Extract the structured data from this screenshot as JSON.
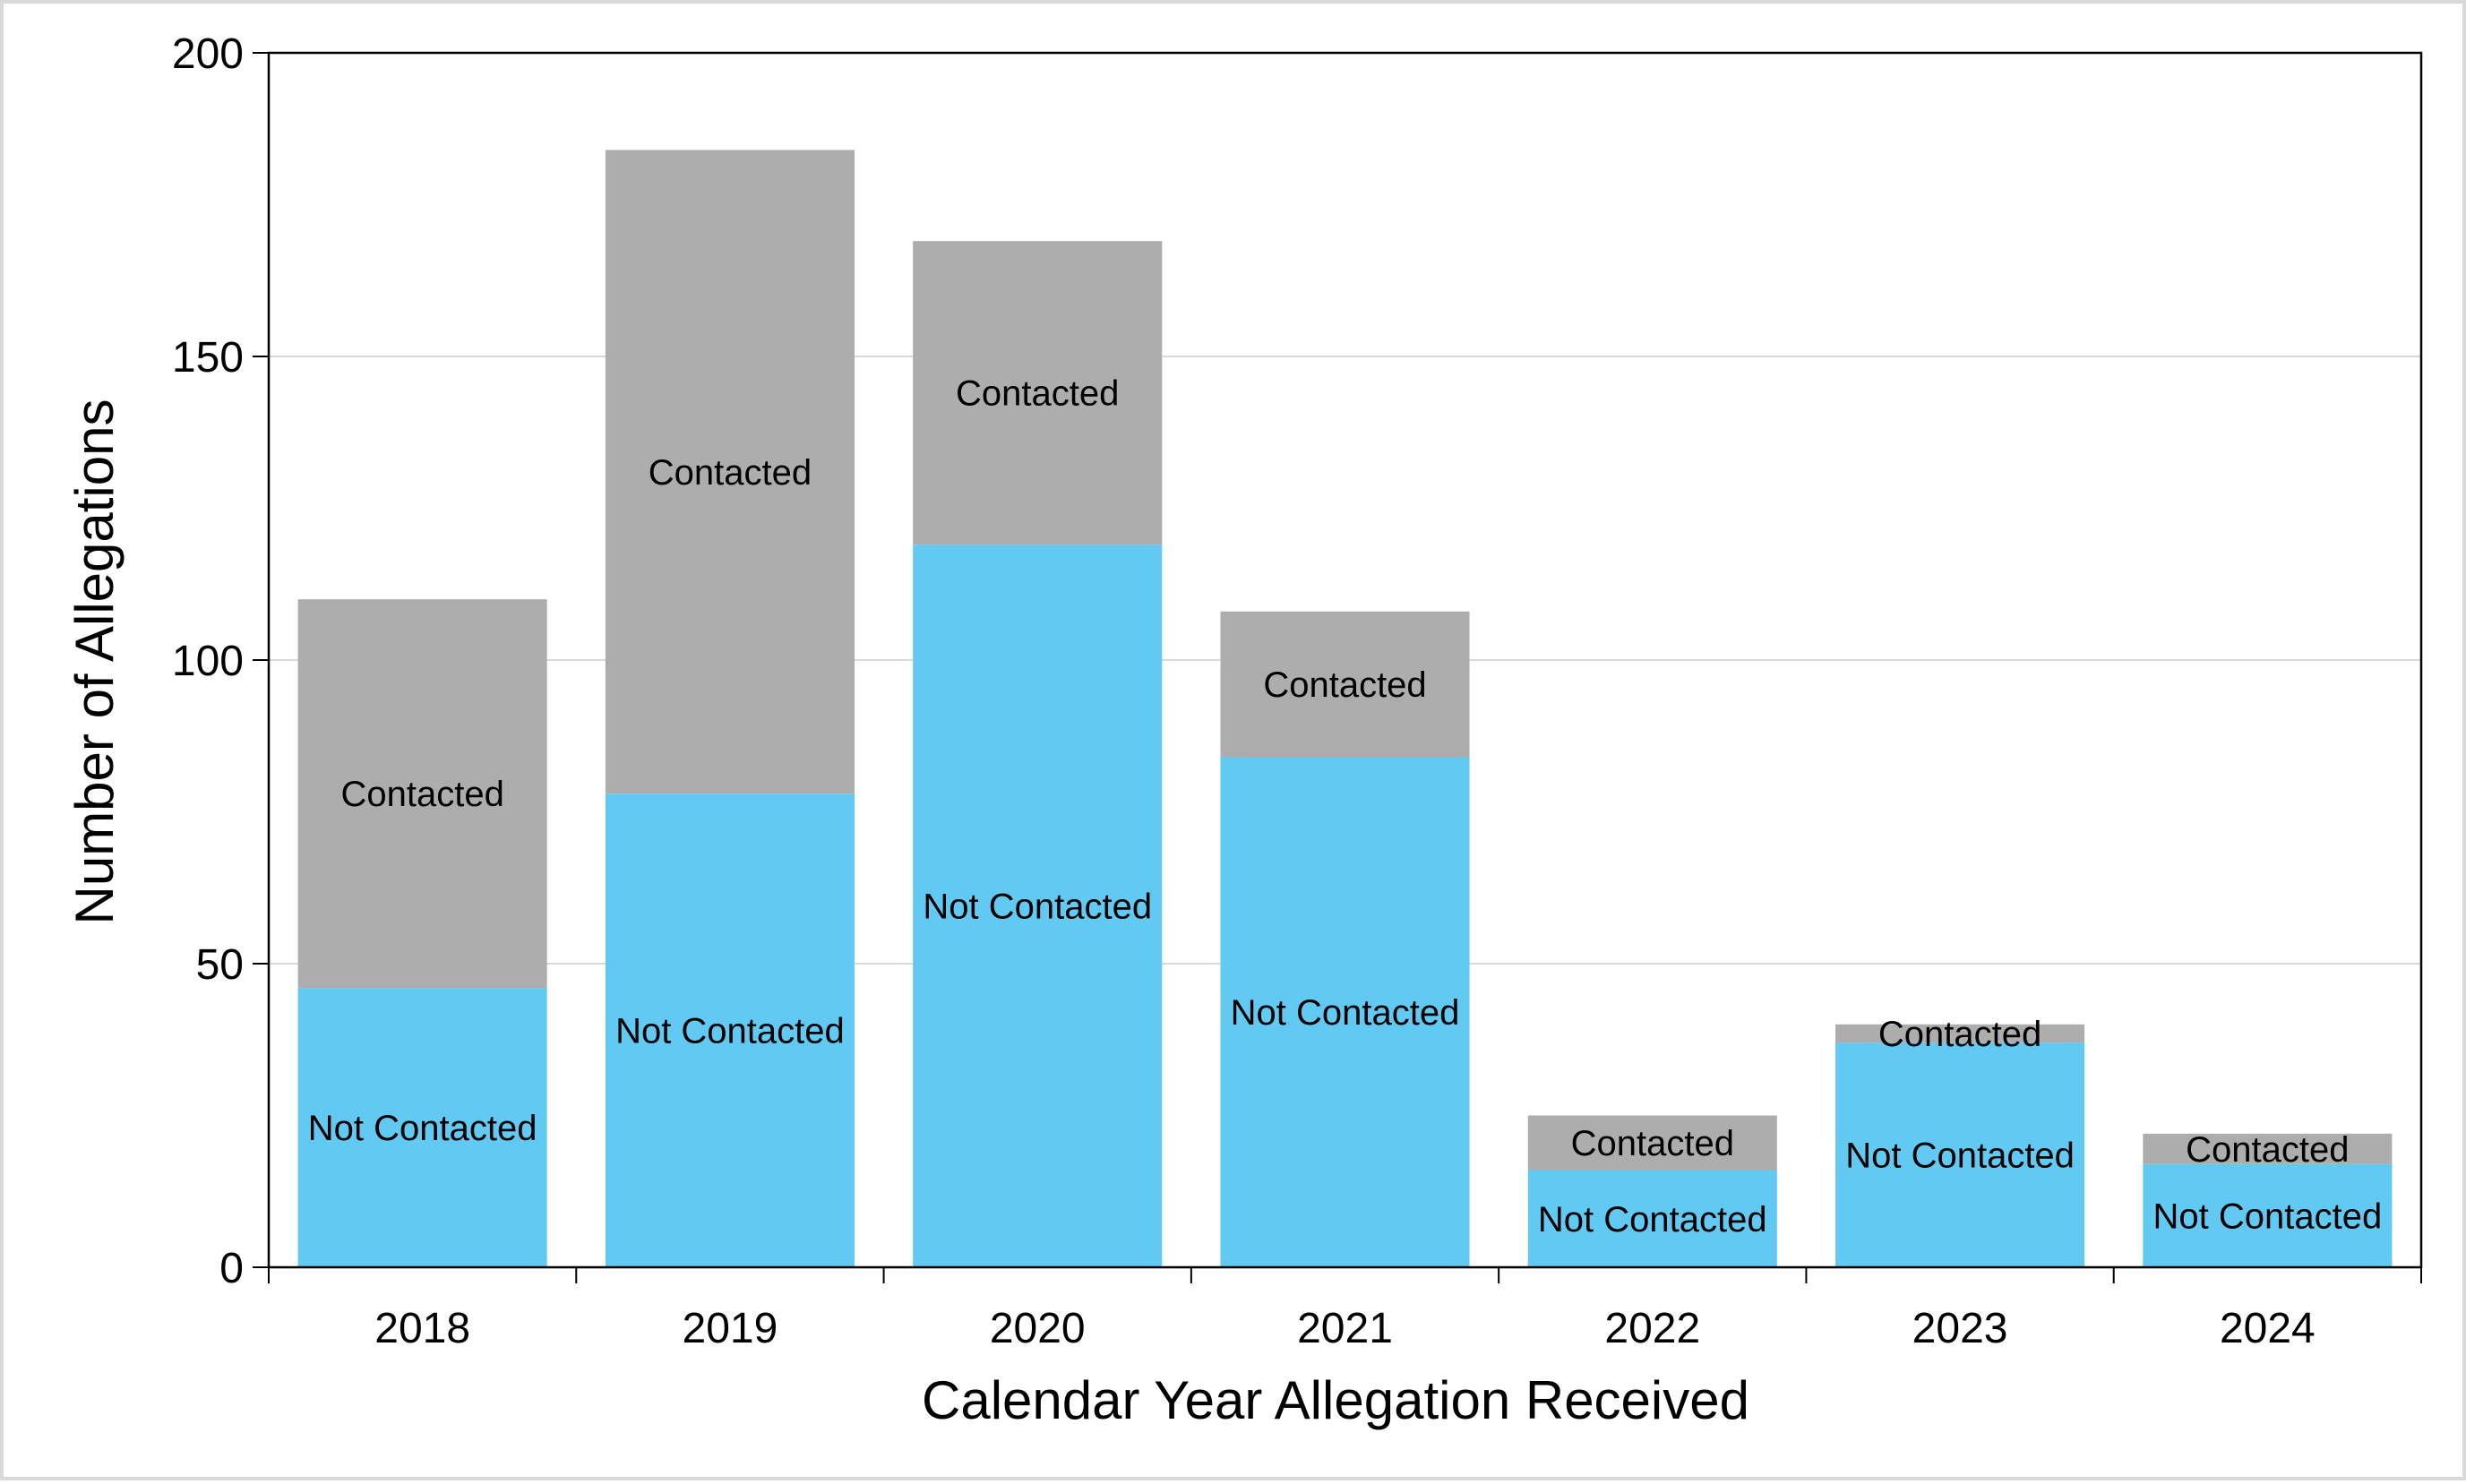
{
  "chart_data": {
    "type": "bar",
    "stacked": true,
    "title": "",
    "xlabel": "Calendar Year Allegation Received",
    "ylabel": "Number of Allegations",
    "ylim": [
      0,
      200
    ],
    "yticks": [
      0,
      50,
      100,
      150,
      200
    ],
    "grid": true,
    "legend": "none",
    "categories": [
      "2018",
      "2019",
      "2020",
      "2021",
      "2022",
      "2023",
      "2024"
    ],
    "series": [
      {
        "name": "Not Contacted",
        "color": "#62c9f3",
        "values": [
          46,
          78,
          119,
          84,
          16,
          37,
          17
        ]
      },
      {
        "name": "Contacted",
        "color": "#adadad",
        "values": [
          64,
          106,
          50,
          24,
          9,
          3,
          5
        ]
      }
    ]
  }
}
